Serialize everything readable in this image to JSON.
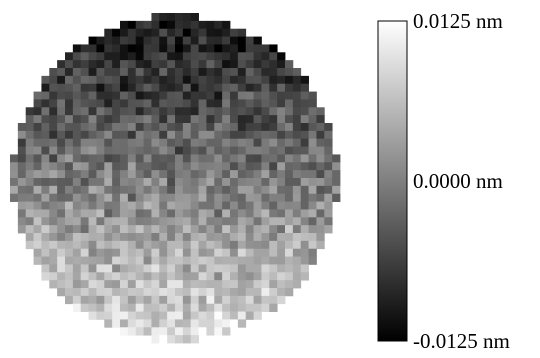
{
  "chart_data": {
    "type": "heatmap",
    "title": "",
    "xlabel": "",
    "ylabel": "",
    "shape": "circular aperture",
    "grid": false,
    "legend": "colorbar right",
    "colormap": "gray",
    "grid_size": [
      42,
      42
    ],
    "value_range": [
      -0.0125,
      0.0125
    ],
    "trend": "tilt: values low at top, high at bottom, with pixel noise",
    "colorbar": {
      "min": -0.0125,
      "max": 0.0125,
      "units": "nm",
      "ticks": [
        {
          "value": 0.0125,
          "label": "0.0125 nm"
        },
        {
          "value": 0.0,
          "label": "0.0000 nm"
        },
        {
          "value": -0.0125,
          "label": "-0.0125 nm"
        }
      ]
    }
  }
}
